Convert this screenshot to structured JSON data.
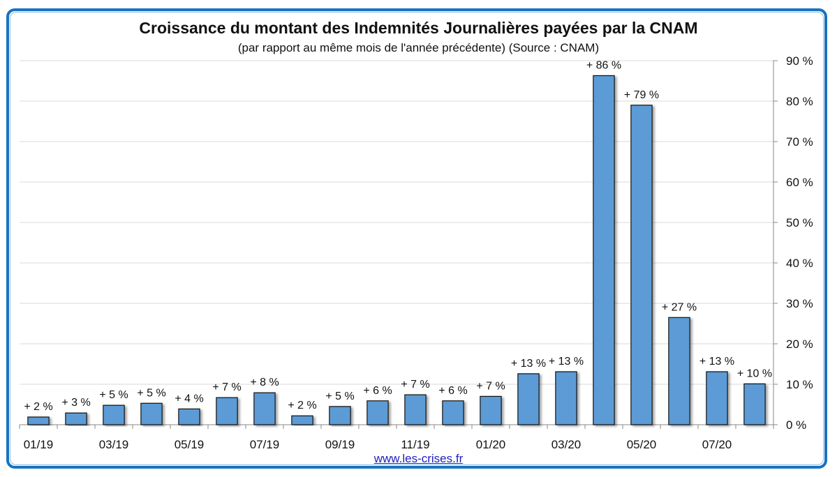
{
  "chart_data": {
    "type": "bar",
    "title": "Croissance du montant des Indemnités Journalières payées par la CNAM",
    "subtitle": "(par rapport au même mois de l'année précédente) (Source : CNAM)",
    "xlabel": "",
    "ylabel": "",
    "ylim": [
      0,
      90
    ],
    "y_ticks": [
      0,
      10,
      20,
      30,
      40,
      50,
      60,
      70,
      80,
      90
    ],
    "y_tick_labels": [
      "0 %",
      "10 %",
      "20 %",
      "30 %",
      "40 %",
      "50 %",
      "60 %",
      "70 %",
      "80 %",
      "90 %"
    ],
    "y_axis_side": "right",
    "grid": true,
    "categories": [
      "01/19",
      "02/19",
      "03/19",
      "04/19",
      "05/19",
      "06/19",
      "07/19",
      "08/19",
      "09/19",
      "10/19",
      "11/19",
      "12/19",
      "01/20",
      "02/20",
      "03/20",
      "04/20",
      "05/20",
      "06/20",
      "07/20",
      "08/20"
    ],
    "x_tick_labels_shown": [
      "01/19",
      "",
      "03/19",
      "",
      "05/19",
      "",
      "07/19",
      "",
      "09/19",
      "",
      "11/19",
      "",
      "01/20",
      "",
      "03/20",
      "",
      "05/20",
      "",
      "07/20",
      ""
    ],
    "values": [
      1.9,
      2.9,
      4.8,
      5.3,
      3.9,
      6.7,
      7.9,
      2.2,
      4.5,
      5.9,
      7.4,
      5.9,
      7.0,
      12.6,
      13.1,
      86.3,
      79.0,
      26.5,
      13.1,
      10.1
    ],
    "data_labels": [
      "+ 2 %",
      "+ 3 %",
      "+ 5 %",
      "+ 5 %",
      "+ 4 %",
      "+ 7 %",
      "+ 8 %",
      "+ 2 %",
      "+ 5 %",
      "+ 6 %",
      "+ 7 %",
      "+ 6 %",
      "+ 7 %",
      "+ 13 %",
      "+ 13 %",
      "+ 86 %",
      "+ 79 %",
      "+ 27 %",
      "+ 13 %",
      "+ 10 %"
    ],
    "bar_color": "#5b9bd5",
    "bar_edge_color": "#111111",
    "legend": "none"
  },
  "footer": {
    "source_link": "www.les-crises.fr"
  },
  "colors": {
    "frame": "#1a72c0",
    "gridline": "#d9d9d9",
    "axis": "#888888"
  }
}
